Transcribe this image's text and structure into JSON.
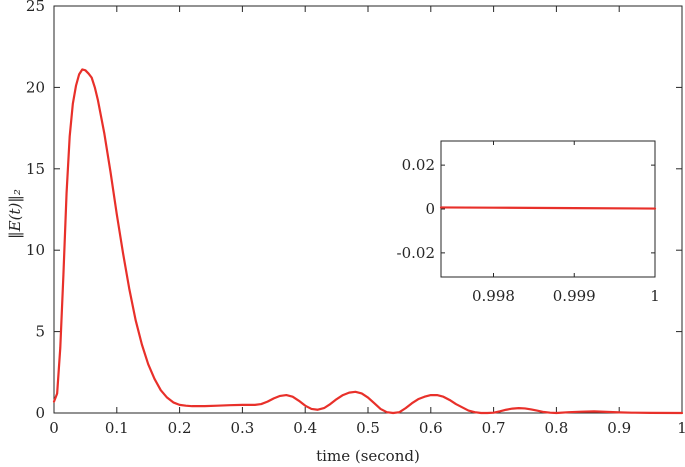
{
  "chart_data": [
    {
      "type": "line",
      "xlabel": "time (second)",
      "ylabel": "‖E(t)‖₂",
      "xlim": [
        0,
        1
      ],
      "ylim": [
        0,
        25
      ],
      "xticks": [
        "0",
        "0.1",
        "0.2",
        "0.3",
        "0.4",
        "0.5",
        "0.6",
        "0.7",
        "0.8",
        "0.9",
        "1"
      ],
      "yticks": [
        "0",
        "5",
        "10",
        "15",
        "20",
        "25"
      ],
      "grid": false,
      "color": "#e8302a",
      "series": [
        {
          "x": [
            0,
            0.005,
            0.01,
            0.015,
            0.02,
            0.025,
            0.03,
            0.035,
            0.04,
            0.045,
            0.05,
            0.055,
            0.06,
            0.065,
            0.07,
            0.075,
            0.08,
            0.09,
            0.1,
            0.11,
            0.12,
            0.13,
            0.14,
            0.15,
            0.16,
            0.17,
            0.18,
            0.19,
            0.2,
            0.21,
            0.22,
            0.24,
            0.26,
            0.28,
            0.3,
            0.32,
            0.33,
            0.34,
            0.35,
            0.36,
            0.37,
            0.38,
            0.39,
            0.4,
            0.41,
            0.42,
            0.43,
            0.44,
            0.45,
            0.46,
            0.47,
            0.48,
            0.49,
            0.5,
            0.51,
            0.52,
            0.53,
            0.54,
            0.55,
            0.56,
            0.57,
            0.58,
            0.59,
            0.6,
            0.61,
            0.62,
            0.63,
            0.64,
            0.65,
            0.66,
            0.67,
            0.68,
            0.69,
            0.7,
            0.71,
            0.72,
            0.73,
            0.74,
            0.75,
            0.76,
            0.77,
            0.78,
            0.79,
            0.8,
            0.82,
            0.84,
            0.86,
            0.88,
            0.9,
            0.92,
            0.95,
            1.0
          ],
          "y": [
            0.7,
            1.2,
            4.0,
            8.5,
            13.5,
            17.0,
            19.0,
            20.1,
            20.8,
            21.1,
            21.05,
            20.85,
            20.6,
            20.0,
            19.2,
            18.2,
            17.2,
            14.8,
            12.2,
            9.8,
            7.6,
            5.7,
            4.2,
            3.0,
            2.1,
            1.4,
            0.95,
            0.65,
            0.5,
            0.45,
            0.42,
            0.42,
            0.45,
            0.48,
            0.5,
            0.5,
            0.55,
            0.7,
            0.9,
            1.05,
            1.1,
            1.0,
            0.75,
            0.45,
            0.25,
            0.2,
            0.3,
            0.55,
            0.85,
            1.1,
            1.25,
            1.3,
            1.2,
            0.95,
            0.6,
            0.25,
            0.05,
            0.0,
            0.05,
            0.3,
            0.6,
            0.85,
            1.0,
            1.1,
            1.1,
            1.0,
            0.8,
            0.55,
            0.35,
            0.15,
            0.05,
            0.0,
            0.0,
            0.02,
            0.1,
            0.2,
            0.27,
            0.3,
            0.28,
            0.22,
            0.14,
            0.06,
            0.02,
            0.0,
            0.05,
            0.08,
            0.1,
            0.07,
            0.04,
            0.02,
            0.01,
            0.0
          ]
        }
      ]
    },
    {
      "type": "line",
      "xlim": [
        0.99735,
        1.0
      ],
      "ylim": [
        -0.031,
        0.031
      ],
      "xticks": [
        "0.998",
        "0.999",
        "1"
      ],
      "yticks": [
        "0.02",
        "0",
        "-0.02"
      ],
      "grid": false,
      "color": "#e8302a",
      "series": [
        {
          "x": [
            0.99735,
            0.998,
            0.999,
            1.0
          ],
          "y": [
            0.0007,
            0.0006,
            0.0004,
            0.0002
          ]
        }
      ]
    }
  ]
}
